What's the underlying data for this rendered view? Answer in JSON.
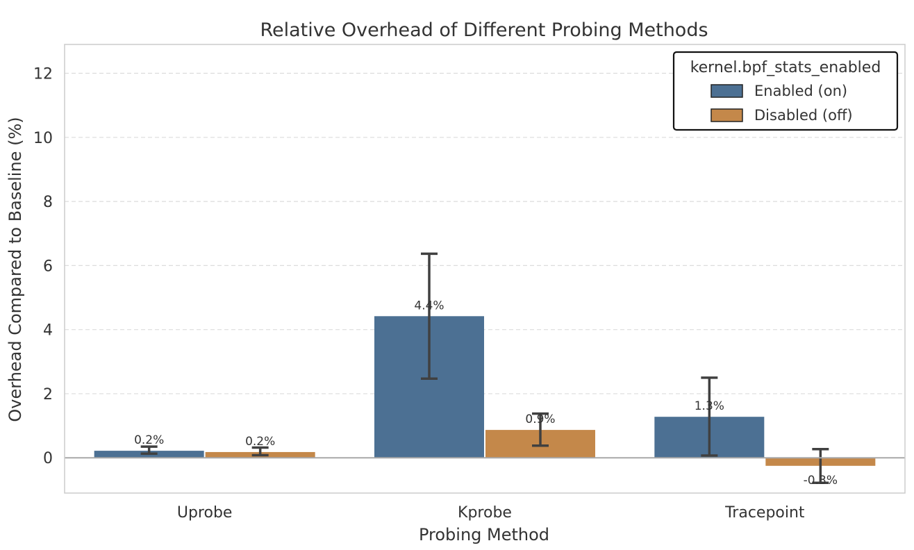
{
  "chart_data": {
    "type": "bar",
    "title": "Relative Overhead of Different Probing Methods",
    "xlabel": "Probing Method",
    "ylabel": "Overhead Compared to Baseline (%)",
    "categories": [
      "Uprobe",
      "Kprobe",
      "Tracepoint"
    ],
    "ylim": [
      -1.1,
      12.9
    ],
    "yticks": [
      0,
      2,
      4,
      6,
      8,
      10,
      12
    ],
    "ytick_labels": [
      "0",
      "2",
      "4",
      "6",
      "8",
      "10",
      "12"
    ],
    "grid": true,
    "legend_position": "top-right",
    "legend_title": "kernel.bpf_stats_enabled",
    "series": [
      {
        "name": "Enabled (on)",
        "color": "#4c7093",
        "values": [
          0.22,
          4.42,
          1.28
        ],
        "error_low": [
          0.13,
          2.47,
          0.07
        ],
        "error_high": [
          0.35,
          6.37,
          2.5
        ],
        "labels": [
          "0.2%",
          "4.4%",
          "1.3%"
        ]
      },
      {
        "name": "Disabled (off)",
        "color": "#c4884a",
        "values": [
          0.18,
          0.87,
          -0.25
        ],
        "error_low": [
          0.08,
          0.38,
          -0.78
        ],
        "error_high": [
          0.32,
          1.38,
          0.27
        ],
        "labels": [
          "0.2%",
          "0.9%",
          "-0.3%"
        ]
      }
    ]
  }
}
